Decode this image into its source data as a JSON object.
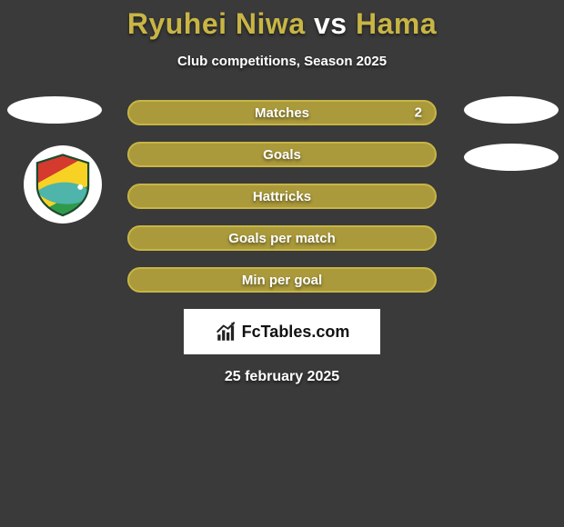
{
  "title": {
    "player1": "Ryuhei Niwa",
    "vs": " vs ",
    "player2": "Hama",
    "player1_color": "#c8b545",
    "vs_color": "#ffffff",
    "player2_color": "#c8b545"
  },
  "subtitle": "Club competitions, Season 2025",
  "bars": {
    "fill_color": "#aa9a3b",
    "border_color": "#c8b545",
    "items": [
      {
        "label": "Matches",
        "value": "2",
        "show_value": true
      },
      {
        "label": "Goals",
        "value": "",
        "show_value": false
      },
      {
        "label": "Hattricks",
        "value": "",
        "show_value": false
      },
      {
        "label": "Goals per match",
        "value": "",
        "show_value": false
      },
      {
        "label": "Min per goal",
        "value": "",
        "show_value": false
      }
    ]
  },
  "badge": {
    "colors": {
      "red": "#d43a2e",
      "yellow": "#f7d224",
      "green": "#2f9b4a",
      "bird": "#4fb4aa",
      "outline": "#1e4a2e"
    }
  },
  "brand": {
    "name": "FcTables.com",
    "icon_color": "#222222"
  },
  "date": "25 february 2025",
  "background_color": "#3a3a3a"
}
